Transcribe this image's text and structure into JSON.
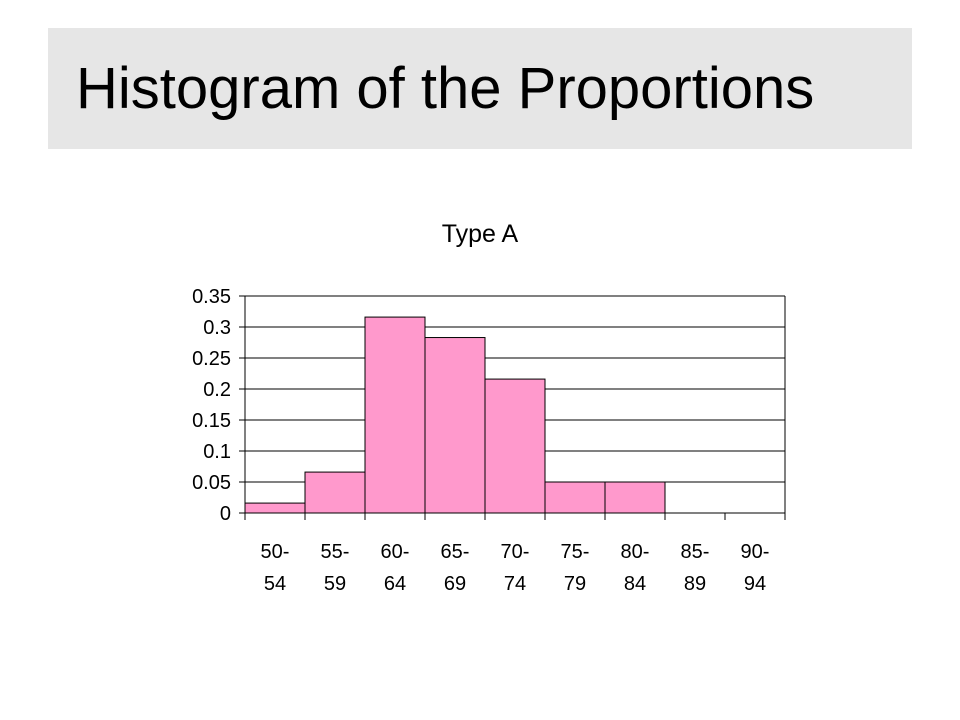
{
  "slide": {
    "title": "Histogram of the Proportions",
    "title_bar_color": "#e6e6e6"
  },
  "chart_data": {
    "type": "bar",
    "title": "Type A",
    "categories": [
      [
        "50-",
        "54"
      ],
      [
        "55-",
        "59"
      ],
      [
        "60-",
        "64"
      ],
      [
        "65-",
        "69"
      ],
      [
        "70-",
        "74"
      ],
      [
        "75-",
        "79"
      ],
      [
        "80-",
        "84"
      ],
      [
        "85-",
        "89"
      ],
      [
        "90-",
        "94"
      ]
    ],
    "values": [
      0.016,
      0.066,
      0.316,
      0.283,
      0.216,
      0.05,
      0.05,
      0,
      0
    ],
    "ylim": [
      0,
      0.35
    ],
    "yticks": [
      "0",
      "0.05",
      "0.1",
      "0.15",
      "0.2",
      "0.25",
      "0.3",
      "0.35"
    ],
    "xlabel": "",
    "ylabel": "",
    "grid": true,
    "bar_color": "#ff99cc",
    "bar_edge_color": "#000000",
    "bar_gap": false
  }
}
